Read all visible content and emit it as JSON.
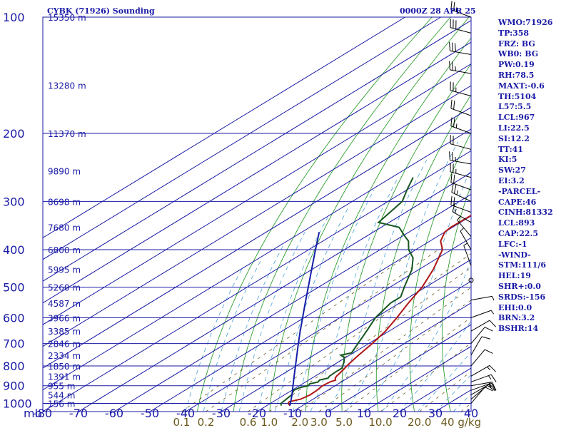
{
  "header": {
    "station": "CYBK (71926) Sounding",
    "datetime": "0000Z 28 APR 25"
  },
  "colors": {
    "frame": "#1a1aa6",
    "dry_adiabat": "#2e9e2e",
    "mixing_ratio": "#6b5a1e",
    "moist_adiabat": "#4aa3d6",
    "temperature": "#b01616",
    "dewpoint": "#16561e",
    "parcel": "#1520a8",
    "mixing_label": "#6b5a1e"
  },
  "indices": [
    "WMO:71926",
    "TP:358",
    "FRZ: BG",
    "WB0: BG",
    "PW:0.19",
    "RH:78.5",
    "MAXT:-0.6",
    "TH:5104",
    "L57:5.5",
    "LCL:967",
    "LI:22.5",
    "SI:12.2",
    "TT:41",
    "KI:5",
    "SW:27",
    "EI:3.2",
    "-PARCEL-",
    "CAPE:46",
    "CINH:81332",
    "LCL:893",
    "CAP:22.5",
    "LFC:-1",
    "-WIND-",
    "STM:111/6",
    "HEL:19",
    "SHR+:0.0",
    "SRDS:-156",
    "EHI:0.0",
    "BRN:3.2",
    "BSHR:14"
  ],
  "chart_data": {
    "type": "skew-t log-p sounding",
    "x_axis": {
      "label": "mb",
      "ticks": [
        -80,
        -70,
        -60,
        -50,
        -40,
        -30,
        -20,
        -10,
        0,
        10,
        20,
        30,
        40
      ],
      "tick_labels": [
        "-80",
        "-70",
        "-60",
        "-50",
        "-40",
        "-30",
        "-20",
        "-10",
        "0",
        "10",
        "20",
        "30",
        "40"
      ],
      "range": [
        -80,
        40
      ]
    },
    "y_axis": {
      "pressure_ticks": [
        100,
        200,
        300,
        400,
        500,
        600,
        700,
        800,
        900,
        1000
      ],
      "pressure_labels": [
        "100",
        "200",
        "300",
        "400",
        "500",
        "600",
        "700",
        "800",
        "900",
        "1000"
      ],
      "range": [
        1050,
        100
      ],
      "scale": "log"
    },
    "height_labels": [
      {
        "p": 100,
        "text": "15350 m"
      },
      {
        "p": 150,
        "text": "13280 m"
      },
      {
        "p": 200,
        "text": "11370 m"
      },
      {
        "p": 250,
        "text": "9890 m"
      },
      {
        "p": 300,
        "text": "8698 m"
      },
      {
        "p": 350,
        "text": "7680 m"
      },
      {
        "p": 400,
        "text": "6800 m"
      },
      {
        "p": 450,
        "text": "5995 m"
      },
      {
        "p": 500,
        "text": "5260 m"
      },
      {
        "p": 550,
        "text": "4587 m"
      },
      {
        "p": 600,
        "text": "3966 m"
      },
      {
        "p": 650,
        "text": "3385 m"
      },
      {
        "p": 700,
        "text": "2846 m"
      },
      {
        "p": 750,
        "text": "2334 m"
      },
      {
        "p": 800,
        "text": "1850 m"
      },
      {
        "p": 850,
        "text": "1391 m"
      },
      {
        "p": 900,
        "text": "955 m"
      },
      {
        "p": 950,
        "text": "544 m"
      },
      {
        "p": 1000,
        "text": "156 m"
      }
    ],
    "mixing_ratio_labels": [
      "0.1",
      "0.2",
      "0.6",
      "1.0",
      "2.0",
      "3.0",
      "5.0",
      "10.0",
      "20.0",
      "40 g/kg"
    ],
    "series": [
      {
        "name": "temperature",
        "points": [
          [
            1013,
            -13.5
          ],
          [
            1000,
            -15
          ],
          [
            990,
            -15.5
          ],
          [
            975,
            -13.5
          ],
          [
            950,
            -12.8
          ],
          [
            925,
            -13
          ],
          [
            900,
            -13.5
          ],
          [
            880,
            -13.2
          ],
          [
            870,
            -12.5
          ],
          [
            860,
            -13.5
          ],
          [
            850,
            -14
          ],
          [
            820,
            -15
          ],
          [
            800,
            -15.8
          ],
          [
            780,
            -16.5
          ],
          [
            750,
            -17.5
          ],
          [
            700,
            -19
          ],
          [
            650,
            -21
          ],
          [
            600,
            -24
          ],
          [
            550,
            -27.5
          ],
          [
            500,
            -31
          ],
          [
            450,
            -36
          ],
          [
            400,
            -42.5
          ],
          [
            380,
            -47
          ],
          [
            360,
            -50
          ],
          [
            350,
            -50.5
          ],
          [
            300,
            -50
          ],
          [
            280,
            -48.3
          ],
          [
            260,
            -47.7
          ],
          [
            250,
            -47.9
          ],
          [
            200,
            -47.9
          ],
          [
            180,
            -48.2
          ],
          [
            150,
            -49.5
          ],
          [
            130,
            -48.9
          ],
          [
            120,
            -48.5
          ],
          [
            110,
            -48.2
          ],
          [
            100,
            -48.3
          ]
        ]
      },
      {
        "name": "dewpoint",
        "points": [
          [
            1013,
            -16
          ],
          [
            1000,
            -17
          ],
          [
            950,
            -18
          ],
          [
            925,
            -19.5
          ],
          [
            910,
            -19
          ],
          [
            900,
            -17.5
          ],
          [
            890,
            -18
          ],
          [
            880,
            -16.5
          ],
          [
            870,
            -17
          ],
          [
            860,
            -15.5
          ],
          [
            850,
            -16
          ],
          [
            830,
            -16.2
          ],
          [
            810,
            -16.2
          ],
          [
            800,
            -17
          ],
          [
            780,
            -18.5
          ],
          [
            760,
            -20.5
          ],
          [
            750,
            -22.5
          ],
          [
            740,
            -20.5
          ],
          [
            700,
            -23
          ],
          [
            650,
            -26.3
          ],
          [
            600,
            -30
          ],
          [
            550,
            -32.5
          ],
          [
            530,
            -32.5
          ],
          [
            500,
            -36
          ],
          [
            450,
            -42
          ],
          [
            420,
            -47
          ],
          [
            400,
            -52
          ],
          [
            380,
            -56
          ],
          [
            370,
            -59
          ],
          [
            350,
            -65
          ],
          [
            340,
            -73
          ],
          [
            300,
            -76
          ],
          [
            280,
            -80
          ],
          [
            260,
            -84
          ]
        ]
      },
      {
        "name": "parcel",
        "points": [
          [
            1013,
            -13.5
          ],
          [
            950,
            -17.9
          ],
          [
            900,
            -21.8
          ],
          [
            850,
            -25.9
          ],
          [
            800,
            -30.2
          ],
          [
            750,
            -34.8
          ],
          [
            700,
            -39.7
          ],
          [
            650,
            -44.9
          ],
          [
            600,
            -50.4
          ],
          [
            550,
            -56.4
          ],
          [
            500,
            -62.9
          ],
          [
            450,
            -70.1
          ],
          [
            400,
            -78.1
          ],
          [
            360,
            -85.2
          ]
        ]
      }
    ],
    "wind_barbs": [
      {
        "p": 100,
        "dir": 290,
        "spd": 25
      },
      {
        "p": 110,
        "dir": 285,
        "spd": 30
      },
      {
        "p": 125,
        "dir": 280,
        "spd": 30
      },
      {
        "p": 140,
        "dir": 280,
        "spd": 25
      },
      {
        "p": 160,
        "dir": 285,
        "spd": 25
      },
      {
        "p": 180,
        "dir": 290,
        "spd": 20
      },
      {
        "p": 200,
        "dir": 290,
        "spd": 25
      },
      {
        "p": 220,
        "dir": 285,
        "spd": 20
      },
      {
        "p": 240,
        "dir": 280,
        "spd": 25
      },
      {
        "p": 260,
        "dir": 285,
        "spd": 25
      },
      {
        "p": 280,
        "dir": 290,
        "spd": 20
      },
      {
        "p": 300,
        "dir": 295,
        "spd": 25
      },
      {
        "p": 320,
        "dir": 290,
        "spd": 20
      },
      {
        "p": 340,
        "dir": 300,
        "spd": 15
      },
      {
        "p": 370,
        "dir": 320,
        "spd": 5
      },
      {
        "p": 400,
        "dir": 330,
        "spd": 5
      },
      {
        "p": 440,
        "dir": 340,
        "spd": 5
      },
      {
        "p": 480,
        "dir": 0,
        "spd": 0
      },
      {
        "p": 540,
        "dir": 80,
        "spd": 5
      },
      {
        "p": 600,
        "dir": 70,
        "spd": 5
      },
      {
        "p": 650,
        "dir": 60,
        "spd": 10
      },
      {
        "p": 700,
        "dir": 40,
        "spd": 10
      },
      {
        "p": 750,
        "dir": 30,
        "spd": 10
      },
      {
        "p": 800,
        "dir": 40,
        "spd": 10
      },
      {
        "p": 850,
        "dir": 60,
        "spd": 15
      },
      {
        "p": 880,
        "dir": 70,
        "spd": 15
      },
      {
        "p": 900,
        "dir": 80,
        "spd": 15
      },
      {
        "p": 925,
        "dir": 70,
        "spd": 15
      },
      {
        "p": 950,
        "dir": 60,
        "spd": 10
      },
      {
        "p": 975,
        "dir": 50,
        "spd": 10
      },
      {
        "p": 1000,
        "dir": 40,
        "spd": 10
      }
    ]
  }
}
